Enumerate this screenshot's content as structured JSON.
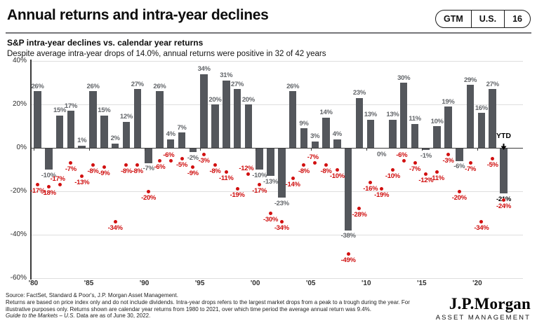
{
  "header": {
    "title": "Annual returns and intra-year declines",
    "badge": {
      "gtm": "GTM",
      "region": "U.S.",
      "page": "16"
    }
  },
  "chart_header": {
    "title": "S&P intra-year declines vs. calendar year returns",
    "subtitle": "Despite average intra-year drops of 14.0%, annual returns were positive in 32 of 42 years"
  },
  "chart_data": {
    "type": "bar",
    "title": "S&P intra-year declines vs. calendar year returns",
    "x": [
      1980,
      1981,
      1982,
      1983,
      1984,
      1985,
      1986,
      1987,
      1988,
      1989,
      1990,
      1991,
      1992,
      1993,
      1994,
      1995,
      1996,
      1997,
      1998,
      1999,
      2000,
      2001,
      2002,
      2003,
      2004,
      2005,
      2006,
      2007,
      2008,
      2009,
      2010,
      2011,
      2012,
      2013,
      2014,
      2015,
      2016,
      2017,
      2018,
      2019,
      2020,
      2021,
      2022
    ],
    "series": [
      {
        "name": "Calendar year return",
        "type": "bar",
        "values": [
          26,
          -10,
          15,
          17,
          1,
          26,
          15,
          2,
          12,
          27,
          -7,
          26,
          4,
          7,
          -2,
          34,
          20,
          31,
          27,
          20,
          -10,
          -13,
          -23,
          26,
          9,
          3,
          14,
          4,
          -38,
          23,
          13,
          0,
          13,
          30,
          11,
          -1,
          10,
          19,
          -6,
          29,
          16,
          27,
          -21
        ]
      },
      {
        "name": "Intra-year decline",
        "type": "scatter",
        "values": [
          -17,
          -18,
          -17,
          -7,
          -13,
          -8,
          -9,
          -34,
          -8,
          -8,
          -20,
          -6,
          -6,
          -5,
          -9,
          -3,
          -8,
          -11,
          -19,
          -12,
          -17,
          -30,
          -34,
          -14,
          -8,
          -7,
          -8,
          -10,
          -49,
          -28,
          -16,
          -19,
          -10,
          -6,
          -7,
          -12,
          -11,
          -3,
          -20,
          -7,
          -34,
          -5,
          -24
        ]
      }
    ],
    "ylim": [
      -60,
      40
    ],
    "y_ticks": [
      40,
      20,
      0,
      -20,
      -40,
      -60
    ],
    "y_tick_labels": [
      "40%",
      "20%",
      "0%",
      "-20%",
      "-40%",
      "-60%"
    ],
    "x_tick_years": [
      1980,
      1985,
      1990,
      1995,
      2000,
      2005,
      2010,
      2015,
      2020
    ],
    "x_tick_labels": [
      "'80",
      "'85",
      "'90",
      "'95",
      "'00",
      "'05",
      "'10",
      "'15",
      "'20"
    ],
    "annotations": {
      "ytd": "YTD"
    },
    "grid": true,
    "legend": "none",
    "colors": {
      "bar": "#54575c",
      "dot": "#d11010",
      "dot_label": "#cf0d0d",
      "bar_label": "#63666a",
      "final_bar_label": "#000000",
      "grid": "#dedede",
      "axis": "#3a3a3a"
    }
  },
  "footer": {
    "source": "Source: FactSet, Standard & Poor's, J.P. Morgan Asset Management.",
    "note": "Returns are based on price index only and do not include dividends. Intra-year drops refers to the largest market drops from a peak to a trough during the year. For illustrative purposes only. Returns shown are calendar year returns from 1980 to 2021, over which time period the average annual return was 9.4%.",
    "gtm_italic": "Guide to the Markets – U.S.",
    "gtm_rest": " Data are as of June 30, 2022.",
    "logo": {
      "wordmark": "J.P.Morgan",
      "sub": "ASSET MANAGEMENT"
    }
  }
}
